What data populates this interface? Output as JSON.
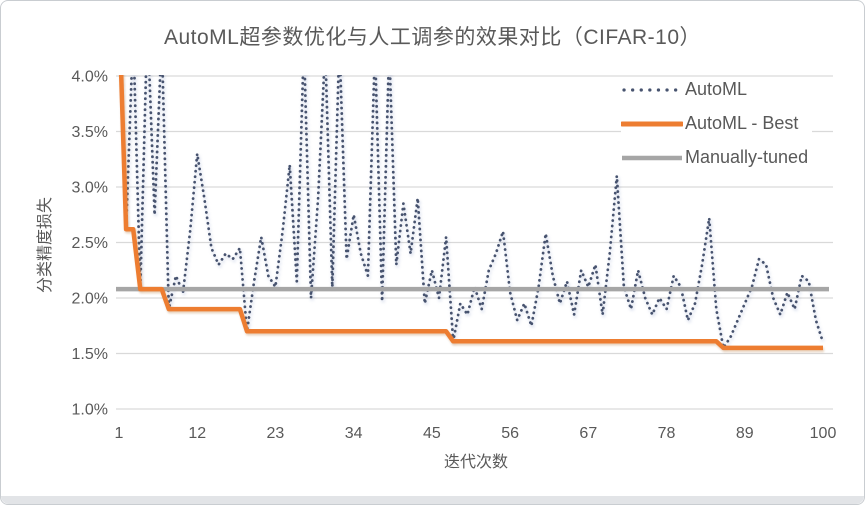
{
  "colors": {
    "text": "#595959",
    "grid": "#d9d9d9",
    "automl_dots": "#47536F",
    "automl_best_orange": "#ED7D31",
    "manual_gray": "#A6A6A6"
  },
  "chart_data": {
    "type": "line",
    "title": "AutoML超参数优化与人工调参的效果对比（CIFAR-10）",
    "xlabel": "迭代次数",
    "ylabel": "分类精度损失",
    "xlim": [
      1,
      100
    ],
    "ylim": [
      1.0,
      4.0
    ],
    "grid": true,
    "legend_position": "top-right",
    "x_axis": {
      "ticks": [
        1,
        12,
        23,
        34,
        45,
        56,
        67,
        78,
        89,
        100
      ]
    },
    "y_axis": {
      "ticks": [
        {
          "label": "4.0%",
          "value": 4.0
        },
        {
          "label": "3.5%",
          "value": 3.5
        },
        {
          "label": "3.0%",
          "value": 3.0
        },
        {
          "label": "2.5%",
          "value": 2.5
        },
        {
          "label": "2.0%",
          "value": 2.0
        },
        {
          "label": "1.5%",
          "value": 1.5
        },
        {
          "label": "1.0%",
          "value": 1.0
        }
      ]
    },
    "series": [
      {
        "name": "AutoML",
        "style": "dotted",
        "color": "#47536F",
        "values": [
          4.63,
          2.62,
          4.4,
          2.08,
          4.5,
          2.75,
          4.35,
          1.9,
          2.2,
          2.05,
          2.6,
          3.3,
          2.9,
          2.45,
          2.3,
          2.4,
          2.35,
          2.45,
          1.7,
          2.15,
          2.55,
          2.2,
          2.1,
          2.6,
          3.2,
          2.15,
          4.3,
          2.0,
          2.9,
          4.25,
          2.1,
          4.3,
          2.35,
          2.75,
          2.4,
          2.2,
          4.25,
          1.97,
          4.25,
          2.3,
          2.85,
          2.4,
          2.9,
          1.95,
          2.25,
          2.0,
          2.55,
          1.61,
          1.95,
          1.85,
          2.1,
          1.9,
          2.25,
          2.4,
          2.6,
          2.05,
          1.8,
          1.95,
          1.75,
          2.1,
          2.58,
          2.2,
          1.95,
          2.15,
          1.85,
          2.25,
          2.1,
          2.3,
          1.85,
          2.4,
          3.1,
          2.1,
          1.9,
          2.25,
          2.0,
          1.85,
          2.0,
          1.9,
          2.2,
          2.1,
          1.8,
          1.95,
          2.3,
          2.72,
          1.9,
          1.55,
          1.65,
          1.8,
          1.95,
          2.1,
          2.35,
          2.3,
          2.0,
          1.85,
          2.05,
          1.9,
          2.2,
          2.15,
          1.8,
          1.6
        ]
      },
      {
        "name": "AutoML - Best",
        "style": "solid",
        "color": "#ED7D31",
        "values": [
          4.63,
          2.62,
          2.62,
          2.08,
          2.08,
          2.08,
          2.08,
          1.9,
          1.9,
          1.9,
          1.9,
          1.9,
          1.9,
          1.9,
          1.9,
          1.9,
          1.9,
          1.9,
          1.7,
          1.7,
          1.7,
          1.7,
          1.7,
          1.7,
          1.7,
          1.7,
          1.7,
          1.7,
          1.7,
          1.7,
          1.7,
          1.7,
          1.7,
          1.7,
          1.7,
          1.7,
          1.7,
          1.7,
          1.7,
          1.7,
          1.7,
          1.7,
          1.7,
          1.7,
          1.7,
          1.7,
          1.7,
          1.61,
          1.61,
          1.61,
          1.61,
          1.61,
          1.61,
          1.61,
          1.61,
          1.61,
          1.61,
          1.61,
          1.61,
          1.61,
          1.61,
          1.61,
          1.61,
          1.61,
          1.61,
          1.61,
          1.61,
          1.61,
          1.61,
          1.61,
          1.61,
          1.61,
          1.61,
          1.61,
          1.61,
          1.61,
          1.61,
          1.61,
          1.61,
          1.61,
          1.61,
          1.61,
          1.61,
          1.61,
          1.61,
          1.55,
          1.55,
          1.55,
          1.55,
          1.55,
          1.55,
          1.55,
          1.55,
          1.55,
          1.55,
          1.55,
          1.55,
          1.55,
          1.55,
          1.55
        ]
      },
      {
        "name": "Manually-tuned",
        "style": "solid",
        "color": "#A6A6A6",
        "constant": 2.08
      }
    ]
  }
}
